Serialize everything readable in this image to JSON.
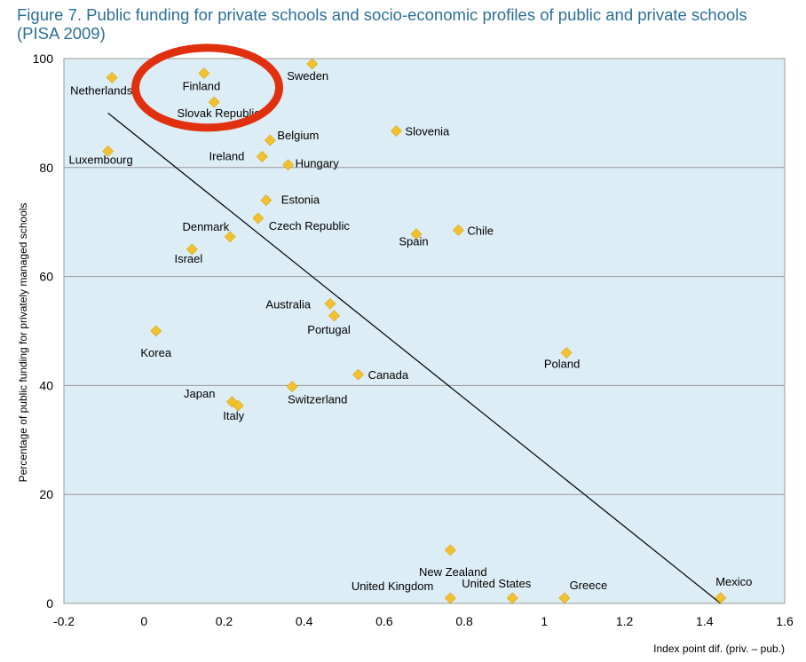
{
  "figure_title": "Figure 7. Public funding for private schools and socio-economic profiles of public and private schools (PISA 2009)",
  "chart_data": {
    "type": "scatter",
    "title": "Figure 7. Public funding for private schools and socio-economic profiles of public and private schools (PISA 2009)",
    "xlabel": "Index point dif. (priv. – pub.)",
    "ylabel": "Percentage of public funding for privately managed schools",
    "xlim": [
      -0.2,
      1.6
    ],
    "ylim": [
      0,
      100
    ],
    "xticks": [
      "-0.2",
      "0",
      "0.2",
      "0.4",
      "0.6",
      "0.8",
      "1",
      "1.2",
      "1.4",
      "1.6"
    ],
    "yticks": [
      "0",
      "20",
      "40",
      "60",
      "80",
      "100"
    ],
    "grid": "horizontal",
    "background_color": "#dcedf5",
    "marker_color": "#f2c12e",
    "trendline_color": "#000000",
    "highlight_color": "#e03010",
    "trendline": {
      "x": [
        -0.09,
        1.44
      ],
      "y": [
        90,
        0
      ]
    },
    "points": [
      {
        "label": "Netherlands",
        "x": -0.08,
        "y": 96.5
      },
      {
        "label": "Finland",
        "x": 0.15,
        "y": 97.3
      },
      {
        "label": "Slovak Republic",
        "x": 0.175,
        "y": 92
      },
      {
        "label": "Sweden",
        "x": 0.42,
        "y": 99.5
      },
      {
        "label": "Luxembourg",
        "x": -0.09,
        "y": 83
      },
      {
        "label": "Belgium",
        "x": 0.315,
        "y": 85
      },
      {
        "label": "Ireland",
        "x": 0.295,
        "y": 82
      },
      {
        "label": "Hungary",
        "x": 0.36,
        "y": 80.5
      },
      {
        "label": "Slovenia",
        "x": 0.63,
        "y": 86.7
      },
      {
        "label": "Estonia",
        "x": 0.305,
        "y": 74
      },
      {
        "label": "Czech Republic",
        "x": 0.285,
        "y": 70.7
      },
      {
        "label": "Denmark",
        "x": 0.215,
        "y": 67.3
      },
      {
        "label": "Israel",
        "x": 0.12,
        "y": 65
      },
      {
        "label": "Spain",
        "x": 0.68,
        "y": 67.8
      },
      {
        "label": "Chile",
        "x": 0.785,
        "y": 68.5
      },
      {
        "label": "Australia",
        "x": 0.465,
        "y": 55
      },
      {
        "label": "Portugal",
        "x": 0.475,
        "y": 52.8
      },
      {
        "label": "Korea",
        "x": 0.03,
        "y": 50
      },
      {
        "label": "Poland",
        "x": 1.055,
        "y": 46
      },
      {
        "label": "Canada",
        "x": 0.535,
        "y": 42
      },
      {
        "label": "Switzerland",
        "x": 0.37,
        "y": 39.8
      },
      {
        "label": "Japan",
        "x": 0.22,
        "y": 37
      },
      {
        "label": "Italy",
        "x": 0.235,
        "y": 36.3
      },
      {
        "label": "New Zealand",
        "x": 0.765,
        "y": 9.8
      },
      {
        "label": "United Kingdom",
        "x": 0.765,
        "y": 0
      },
      {
        "label": "United States",
        "x": 0.92,
        "y": 0
      },
      {
        "label": "Greece",
        "x": 1.05,
        "y": 0
      },
      {
        "label": "Mexico",
        "x": 1.44,
        "y": 1
      }
    ],
    "highlight": {
      "shape": "ellipse",
      "around": [
        "Finland",
        "Slovak Republic"
      ]
    }
  }
}
